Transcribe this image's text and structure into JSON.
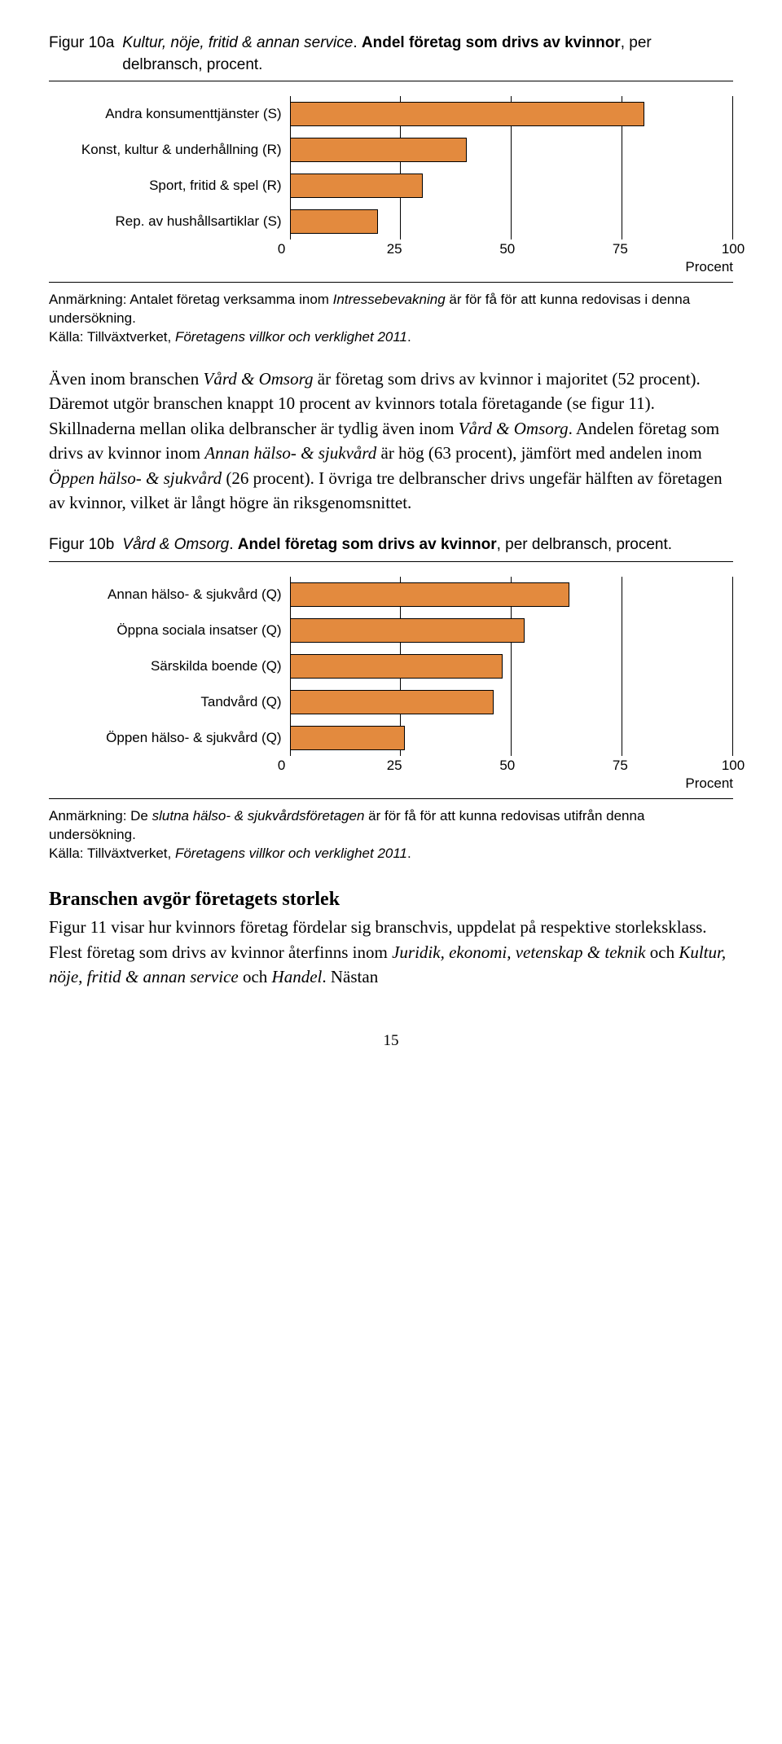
{
  "figureA": {
    "label": "Figur 10a",
    "title_italic": "Kultur, nöje, fritid & annan service",
    "title_rest1": ". ",
    "title_bold": "Andel företag som drivs av kvinnor",
    "title_rest2": ", per delbransch, procent.",
    "chart": {
      "type": "bar-horizontal",
      "bar_color": "#e38a3e",
      "bar_border": "#000000",
      "xlim": [
        0,
        100
      ],
      "ticks": [
        0,
        25,
        50,
        75,
        100
      ],
      "axis_label": "Procent",
      "categories": [
        "Andra konsumenttjänster (S)",
        "Konst, kultur & underhållning (R)",
        "Sport, fritid & spel (R)",
        "Rep. av hushållsartiklar (S)"
      ],
      "values": [
        80,
        40,
        30,
        20
      ]
    },
    "note_line1a": "Anmärkning: Antalet företag verksamma inom ",
    "note_line1b_italic": "Intressebevakning",
    "note_line1c": " är för få för att kunna redovisas i denna undersökning.",
    "note_line2a": "Källa: Tillväxtverket, ",
    "note_line2b_italic": "Företagens villkor och verklighet 2011",
    "note_line2c": "."
  },
  "para1": {
    "t1": "Även inom branschen ",
    "i1": "Vård & Omsorg",
    "t2": " är företag som drivs av kvinnor i majoritet (52 procent). Däremot utgör branschen knappt 10 procent av kvinnors totala företagande (se figur 11). Skillnaderna mellan olika delbranscher är tydlig även inom ",
    "i2": "Vård & Omsorg",
    "t3": ". Andelen företag som drivs av kvinnor inom ",
    "i3": "Annan hälso- & sjukvård",
    "t4": " är hög (63 procent), jämfört med andelen inom ",
    "i4": "Öppen hälso- & sjukvård",
    "t5": " (26 procent). I övriga tre delbranscher drivs ungefär hälften av företagen av kvinnor, vilket är långt högre än riksgenomsnittet."
  },
  "figureB": {
    "label": "Figur 10b",
    "title_italic": "Vård & Omsorg",
    "title_rest1": ". ",
    "title_bold": "Andel företag som drivs av kvinnor",
    "title_rest2": ", per delbransch, procent.",
    "chart": {
      "type": "bar-horizontal",
      "bar_color": "#e38a3e",
      "bar_border": "#000000",
      "xlim": [
        0,
        100
      ],
      "ticks": [
        0,
        25,
        50,
        75,
        100
      ],
      "axis_label": "Procent",
      "categories": [
        "Annan hälso- & sjukvård (Q)",
        "Öppna sociala insatser (Q)",
        "Särskilda boende (Q)",
        "Tandvård (Q)",
        "Öppen hälso- & sjukvård (Q)"
      ],
      "values": [
        63,
        53,
        48,
        46,
        26
      ]
    },
    "note_line1a": "Anmärkning: De ",
    "note_line1b_italic": "slutna hälso- & sjukvårdsföretagen",
    "note_line1c": " är för få för att kunna redovisas utifrån denna undersökning.",
    "note_line2a": "Källa: Tillväxtverket, ",
    "note_line2b_italic": "Företagens villkor och verklighet 2011",
    "note_line2c": "."
  },
  "section_heading": "Branschen avgör företagets storlek",
  "para2": {
    "t1": "Figur 11 visar hur kvinnors företag fördelar sig branschvis, uppdelat på respektive storleksklass. Flest företag som drivs av kvinnor återfinns inom ",
    "i1": "Juridik, ekonomi, vetenskap & teknik",
    "t2": " och ",
    "i2": "Kultur, nöje, fritid & annan service",
    "t3": " och ",
    "i3": "Handel",
    "t4": ". Nästan"
  },
  "page_number": "15"
}
